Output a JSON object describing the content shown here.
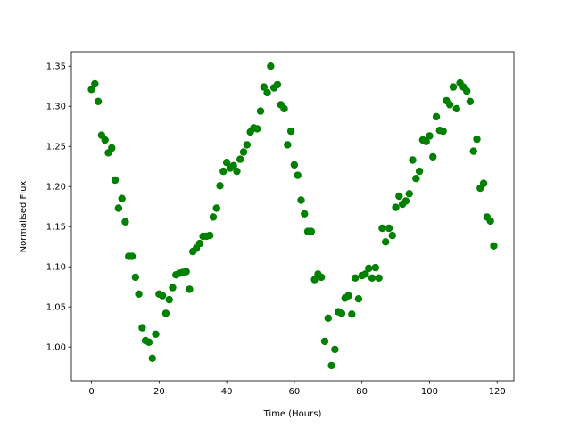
{
  "chart_data": {
    "type": "scatter",
    "x_label": "Time (Hours)",
    "y_label": "Normalised Flux",
    "color": "#008000",
    "xlim": [
      -5.95,
      124.95
    ],
    "ylim": [
      0.958,
      1.368
    ],
    "xticks": [
      0,
      20,
      40,
      60,
      80,
      100,
      120
    ],
    "yticks": [
      {
        "value": 1.0,
        "label": "1.00"
      },
      {
        "value": 1.05,
        "label": "1.05"
      },
      {
        "value": 1.1,
        "label": "1.10"
      },
      {
        "value": 1.15,
        "label": "1.15"
      },
      {
        "value": 1.2,
        "label": "1.20"
      },
      {
        "value": 1.25,
        "label": "1.25"
      },
      {
        "value": 1.3,
        "label": "1.30"
      },
      {
        "value": 1.35,
        "label": "1.35"
      }
    ],
    "x": [
      0,
      1,
      2,
      3,
      4,
      5,
      6,
      7,
      8,
      9,
      10,
      11,
      12,
      13,
      14,
      15,
      16,
      17,
      18,
      19,
      20,
      21,
      22,
      23,
      24,
      25,
      26,
      27,
      28,
      29,
      30,
      31,
      32,
      33,
      34,
      35,
      36,
      37,
      38,
      39,
      40,
      41,
      42,
      43,
      44,
      45,
      46,
      47,
      48,
      49,
      50,
      51,
      52,
      53,
      54,
      55,
      56,
      57,
      58,
      59,
      60,
      61,
      62,
      63,
      64,
      65,
      66,
      67,
      68,
      69,
      70,
      71,
      72,
      73,
      74,
      75,
      76,
      77,
      78,
      79,
      80,
      81,
      82,
      83,
      84,
      85,
      86,
      87,
      88,
      89,
      90,
      91,
      92,
      93,
      94,
      95,
      96,
      97,
      98,
      99,
      100,
      101,
      102,
      103,
      104,
      105,
      106,
      107,
      108,
      109,
      110,
      111,
      112,
      113,
      114,
      115,
      116,
      117,
      118,
      119
    ],
    "values": [
      1.321,
      1.328,
      1.306,
      1.264,
      1.258,
      1.242,
      1.248,
      1.208,
      1.173,
      1.185,
      1.156,
      1.113,
      1.113,
      1.087,
      1.066,
      1.024,
      1.008,
      1.006,
      0.986,
      1.016,
      1.066,
      1.064,
      1.042,
      1.059,
      1.074,
      1.09,
      1.092,
      1.093,
      1.094,
      1.072,
      1.119,
      1.123,
      1.129,
      1.138,
      1.138,
      1.139,
      1.162,
      1.173,
      1.201,
      1.219,
      1.23,
      1.223,
      1.226,
      1.219,
      1.234,
      1.243,
      1.252,
      1.268,
      1.273,
      1.272,
      1.294,
      1.324,
      1.317,
      1.35,
      1.323,
      1.327,
      1.302,
      1.297,
      1.252,
      1.269,
      1.227,
      1.214,
      1.183,
      1.166,
      1.144,
      1.144,
      1.084,
      1.091,
      1.087,
      1.007,
      1.036,
      0.977,
      0.997,
      1.044,
      1.042,
      1.061,
      1.064,
      1.041,
      1.086,
      1.06,
      1.089,
      1.091,
      1.098,
      1.086,
      1.099,
      1.086,
      1.148,
      1.131,
      1.148,
      1.139,
      1.174,
      1.188,
      1.178,
      1.182,
      1.191,
      1.233,
      1.21,
      1.219,
      1.258,
      1.256,
      1.263,
      1.237,
      1.287,
      1.27,
      1.269,
      1.307,
      1.302,
      1.324,
      1.297,
      1.329,
      1.324,
      1.319,
      1.306,
      1.244,
      1.259,
      1.198,
      1.204,
      1.162,
      1.157,
      1.126
    ]
  }
}
